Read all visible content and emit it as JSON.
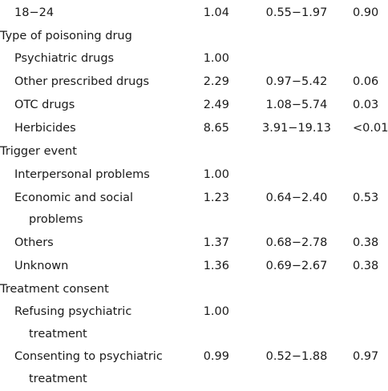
{
  "table": {
    "rows": [
      {
        "label": "18−24",
        "or": "1.04",
        "ci": "0.55−1.97",
        "p": "0.90"
      },
      {
        "heading": "Type of poisoning drug"
      },
      {
        "label": "Psychiatric drugs",
        "or": "1.00"
      },
      {
        "label": "Other prescribed drugs",
        "or": "2.29",
        "ci": "0.97−5.42",
        "p": "0.06"
      },
      {
        "label": "OTC drugs",
        "or": "2.49",
        "ci": "1.08−5.74",
        "p": "0.03"
      },
      {
        "label": "Herbicides",
        "or": "8.65",
        "ci": "3.91−19.13",
        "p": "<0.01"
      },
      {
        "heading": "Trigger event"
      },
      {
        "label": "Interpersonal problems",
        "or": "1.00"
      },
      {
        "label": "Economic and social problems",
        "or": "1.23",
        "ci": "0.64−2.40",
        "p": "0.53"
      },
      {
        "label": "Others",
        "or": "1.37",
        "ci": "0.68−2.78",
        "p": "0.38"
      },
      {
        "label": "Unknown",
        "or": "1.36",
        "ci": "0.69−2.67",
        "p": "0.38"
      },
      {
        "heading": "Treatment consent"
      },
      {
        "label": "Refusing psychiatric treatment",
        "or": "1.00"
      },
      {
        "label": "Consenting to psychiatric treatment",
        "or": "0.99",
        "ci": "0.52−1.88",
        "p": "0.97"
      }
    ]
  }
}
